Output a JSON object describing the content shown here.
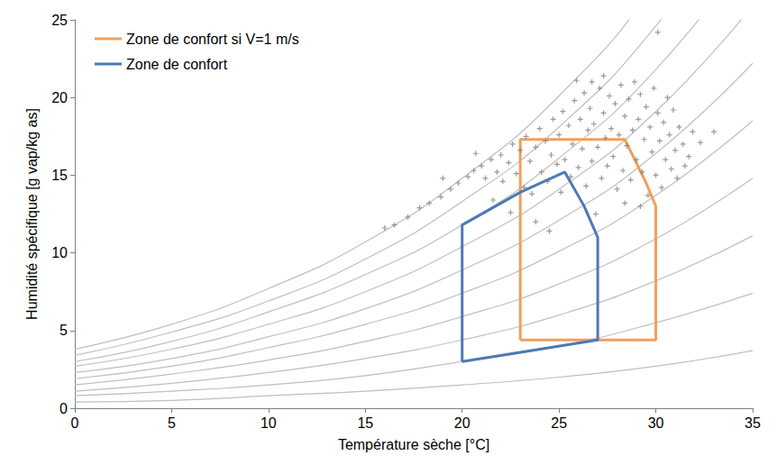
{
  "chart_data": {
    "type": "line",
    "x_label": "Température sèche [°C]",
    "y_label": "Humidité spécifique [g vap/kg as]",
    "xlim": [
      0,
      35
    ],
    "xticks": [
      0,
      5,
      10,
      15,
      20,
      25,
      30,
      35
    ],
    "ylim": [
      0,
      25
    ],
    "yticks": [
      0,
      5,
      10,
      15,
      20,
      25
    ],
    "grid": false,
    "legend": "upper left",
    "curves": {
      "color": "#bfbfbf",
      "x": [
        0,
        5,
        10,
        15,
        20,
        25,
        30,
        35
      ],
      "values": [
        [
          0.4,
          0.5,
          0.8,
          1.1,
          1.5,
          2.0,
          2.7,
          3.7
        ],
        [
          0.8,
          1.1,
          1.5,
          2.1,
          3.0,
          4.0,
          5.5,
          7.4
        ],
        [
          1.1,
          1.6,
          2.3,
          3.2,
          4.4,
          6.0,
          8.2,
          11.1
        ],
        [
          1.5,
          2.2,
          3.1,
          4.3,
          5.9,
          8.0,
          10.9,
          14.8
        ],
        [
          1.9,
          2.7,
          3.9,
          5.4,
          7.4,
          10.1,
          13.7,
          18.5
        ],
        [
          2.3,
          3.2,
          4.6,
          6.4,
          8.9,
          12.1,
          16.4,
          22.2
        ],
        [
          2.7,
          3.8,
          5.4,
          7.5,
          10.4,
          14.1,
          19.1,
          25.9
        ],
        [
          3.0,
          4.3,
          6.2,
          8.6,
          11.8,
          16.1,
          21.8,
          29.6
        ],
        [
          3.4,
          4.9,
          6.9,
          9.6,
          13.3,
          18.1,
          24.6,
          33.3
        ],
        [
          3.8,
          5.4,
          7.7,
          10.7,
          14.8,
          20.1,
          27.3,
          37.0
        ]
      ]
    },
    "points": {
      "type": "scatter",
      "color": "#808080",
      "marker": "plus",
      "x": [
        16,
        16.5,
        17.2,
        17.8,
        18.3,
        18.9,
        19.4,
        19.8,
        20.3,
        20.6,
        21.0,
        21.2,
        21.5,
        21.8,
        22.0,
        22.1,
        22.4,
        22.6,
        22.8,
        23.0,
        23.2,
        23.3,
        23.5,
        23.6,
        23.8,
        24.0,
        24.1,
        24.3,
        24.4,
        24.6,
        24.7,
        24.9,
        25.0,
        25.1,
        25.2,
        25.3,
        25.5,
        25.6,
        25.7,
        25.8,
        26.0,
        26.1,
        26.2,
        26.3,
        26.4,
        26.5,
        26.6,
        26.7,
        26.8,
        27.0,
        27.1,
        27.2,
        27.3,
        27.4,
        27.5,
        27.6,
        27.7,
        27.8,
        27.9,
        28.0,
        28.1,
        28.2,
        28.3,
        28.4,
        28.5,
        28.6,
        28.7,
        28.8,
        28.9,
        29.0,
        29.1,
        29.2,
        29.3,
        29.4,
        29.5,
        29.6,
        29.7,
        29.8,
        29.9,
        30.0,
        30.1,
        30.2,
        30.3,
        30.4,
        30.5,
        30.6,
        30.7,
        30.8,
        30.9,
        31.0,
        31.1,
        31.2,
        31.4,
        31.5,
        31.7,
        31.9,
        32.3,
        33.0,
        30.1,
        22.5,
        23.8,
        24.5,
        26.9,
        28.4,
        29.2,
        21.6,
        19.0,
        20.7,
        25.9,
        27.3,
        26.7
      ],
      "y": [
        11.6,
        11.8,
        12.3,
        12.9,
        13.2,
        13.6,
        14.1,
        14.5,
        14.9,
        15.3,
        15.6,
        14.8,
        16.0,
        15.2,
        16.3,
        14.6,
        15.8,
        17.0,
        15.1,
        16.6,
        14.2,
        17.5,
        15.9,
        13.8,
        16.8,
        18.0,
        15.2,
        17.2,
        14.6,
        16.3,
        18.6,
        15.7,
        17.6,
        13.9,
        19.1,
        16.0,
        18.2,
        14.9,
        17.0,
        19.8,
        15.5,
        18.6,
        16.7,
        20.3,
        14.3,
        17.9,
        19.3,
        15.9,
        18.3,
        16.8,
        20.6,
        14.8,
        19.0,
        17.4,
        15.6,
        20.1,
        18.0,
        16.2,
        19.6,
        14.1,
        17.6,
        20.8,
        15.3,
        18.8,
        16.9,
        19.9,
        14.7,
        17.9,
        21.0,
        16.0,
        18.6,
        20.2,
        15.2,
        17.3,
        19.4,
        13.7,
        18.1,
        16.5,
        20.6,
        15.0,
        19.0,
        17.2,
        14.2,
        18.4,
        16.0,
        20.0,
        17.6,
        15.4,
        19.2,
        16.6,
        14.8,
        18.1,
        17.0,
        15.6,
        16.2,
        17.8,
        17.1,
        17.8,
        24.2,
        12.6,
        12.0,
        11.4,
        12.5,
        13.2,
        13.0,
        13.4,
        14.8,
        16.4,
        21.1,
        21.4,
        21.0
      ]
    },
    "series": [
      {
        "name": "Zone de confort si V=1 m/s",
        "color": "#f0a05a",
        "x": [
          23,
          23,
          28.4,
          29.5,
          30,
          30,
          23
        ],
        "values": [
          4.4,
          17.3,
          17.3,
          14.5,
          13,
          4.4,
          4.4
        ]
      },
      {
        "name": "Zone de confort",
        "color": "#4a7ab5",
        "x": [
          20,
          20,
          23,
          25.3,
          26.3,
          27,
          27,
          20
        ],
        "values": [
          3,
          11.8,
          13.9,
          15.2,
          13,
          11,
          4.4,
          3
        ]
      }
    ]
  }
}
